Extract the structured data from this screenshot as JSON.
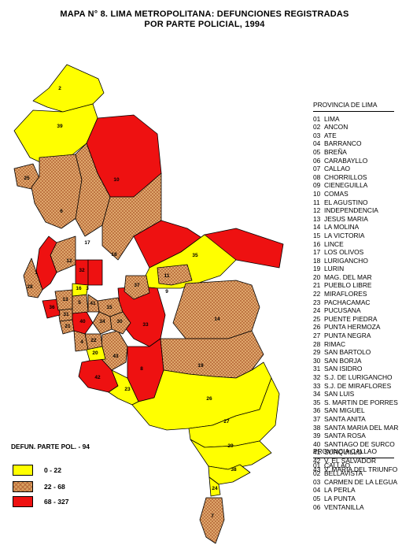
{
  "title": {
    "line1": "MAPA N° 8.  LIMA METROPOLITANA: DEFUNCIONES REGISTRADAS",
    "line2": "POR PARTE POLICIAL,  1994"
  },
  "colors": {
    "low": "#ffff00",
    "mid": "#d9a060",
    "high": "#ee1111",
    "outline": "#000000"
  },
  "lima": {
    "header": "PROVINCIA DE LIMA",
    "items": [
      {
        "num": "01",
        "name": "LIMA"
      },
      {
        "num": "02",
        "name": "ANCON"
      },
      {
        "num": "03",
        "name": "ATE"
      },
      {
        "num": "04",
        "name": "BARRANCO"
      },
      {
        "num": "05",
        "name": "BREÑA"
      },
      {
        "num": "06",
        "name": "CARABAYLLO"
      },
      {
        "num": "07",
        "name": "CALLAO"
      },
      {
        "num": "08",
        "name": "CHORRILLOS"
      },
      {
        "num": "09",
        "name": "CIENEGUILLA"
      },
      {
        "num": "10",
        "name": "COMAS"
      },
      {
        "num": "11",
        "name": "EL AGUSTINO"
      },
      {
        "num": "12",
        "name": "INDEPENDENCIA"
      },
      {
        "num": "13",
        "name": "JESUS MARIA"
      },
      {
        "num": "14",
        "name": "LA MOLINA"
      },
      {
        "num": "15",
        "name": "LA VICTORIA"
      },
      {
        "num": "16",
        "name": "LINCE"
      },
      {
        "num": "17",
        "name": "LOS OLIVOS"
      },
      {
        "num": "18",
        "name": "LURIGANCHO"
      },
      {
        "num": "19",
        "name": "LURIN"
      },
      {
        "num": "20",
        "name": "MAG. DEL MAR"
      },
      {
        "num": "21",
        "name": "PUEBLO LIBRE"
      },
      {
        "num": "22",
        "name": "MIRAFLORES"
      },
      {
        "num": "23",
        "name": "PACHACAMAC"
      },
      {
        "num": "24",
        "name": "PUCUSANA"
      },
      {
        "num": "25",
        "name": "PUENTE PIEDRA"
      },
      {
        "num": "26",
        "name": "PUNTA HERMOZA"
      },
      {
        "num": "27",
        "name": "PUNTA NEGRA"
      },
      {
        "num": "28",
        "name": "RIMAC"
      },
      {
        "num": "29",
        "name": "SAN BARTOLO"
      },
      {
        "num": "30",
        "name": "SAN BORJA"
      },
      {
        "num": "31",
        "name": "SAN ISIDRO"
      },
      {
        "num": "32",
        "name": "S.J. DE LURIGANCHO"
      },
      {
        "num": "33",
        "name": "S.J. DE MIRAFLORES"
      },
      {
        "num": "34",
        "name": "SAN LUIS"
      },
      {
        "num": "35",
        "name": "S. MARTIN DE PORRES"
      },
      {
        "num": "36",
        "name": "SAN MIGUEL"
      },
      {
        "num": "37",
        "name": "SANTA ANITA"
      },
      {
        "num": "38",
        "name": "SANTA MARIA DEL MAR"
      },
      {
        "num": "39",
        "name": "SANTA ROSA"
      },
      {
        "num": "40",
        "name": "SANTIAGO DE SURCO"
      },
      {
        "num": "41",
        "name": "SURQUILLO"
      },
      {
        "num": "42",
        "name": "V. EL SALVADOR"
      },
      {
        "num": "43",
        "name": "V. MARIA DEL TRIUNFO"
      }
    ]
  },
  "callao": {
    "header": "PROVINCIA CALLAO",
    "items": [
      {
        "num": "01",
        "name": "CALLAO"
      },
      {
        "num": "02",
        "name": "BELLAVISTA"
      },
      {
        "num": "03",
        "name": "CARMEN DE LA LEGUA"
      },
      {
        "num": "04",
        "name": "LA PERLA"
      },
      {
        "num": "05",
        "name": "LA PUNTA"
      },
      {
        "num": "06",
        "name": "VENTANILLA"
      }
    ]
  },
  "key": {
    "title": "DEFUN. PARTE POL. - 94",
    "ranges": [
      {
        "class": "low",
        "label": "0     -    22"
      },
      {
        "class": "mid",
        "label": "22    -    68"
      },
      {
        "class": "high",
        "label": "68   -   327"
      }
    ]
  },
  "districts": [
    {
      "label": "2",
      "class": "low"
    },
    {
      "label": "39",
      "class": "low"
    },
    {
      "label": "25",
      "class": "mid"
    },
    {
      "label": "6",
      "class": "mid"
    },
    {
      "label": "10",
      "class": "high"
    },
    {
      "label": "17",
      "class": "mid"
    },
    {
      "label": "12",
      "class": "mid"
    },
    {
      "label": "32",
      "class": "high"
    },
    {
      "label": "18",
      "class": "mid"
    },
    {
      "label": "35",
      "class": "high"
    },
    {
      "label": "1",
      "class": "high"
    },
    {
      "label": "28",
      "class": "mid"
    },
    {
      "label": "3",
      "class": "high"
    },
    {
      "label": "9",
      "class": "low"
    },
    {
      "label": "14",
      "class": "mid"
    },
    {
      "label": "33",
      "class": "high"
    },
    {
      "label": "43",
      "class": "mid"
    },
    {
      "label": "8",
      "class": "high"
    },
    {
      "label": "42",
      "class": "high"
    },
    {
      "label": "23",
      "class": "low"
    },
    {
      "label": "19",
      "class": "mid"
    },
    {
      "label": "26",
      "class": "low"
    },
    {
      "label": "27",
      "class": "low"
    },
    {
      "label": "29",
      "class": "low"
    },
    {
      "label": "38",
      "class": "low"
    },
    {
      "label": "24",
      "class": "low"
    },
    {
      "label": "7",
      "class": "mid"
    },
    {
      "label": "11",
      "class": "mid"
    },
    {
      "label": "37",
      "class": "mid"
    },
    {
      "label": "15",
      "class": "mid"
    },
    {
      "label": "34",
      "class": "mid"
    },
    {
      "label": "30",
      "class": "mid"
    },
    {
      "label": "40",
      "class": "high"
    },
    {
      "label": "22",
      "class": "mid"
    },
    {
      "label": "4",
      "class": "mid"
    },
    {
      "label": "20",
      "class": "low"
    },
    {
      "label": "31",
      "class": "mid"
    },
    {
      "label": "21",
      "class": "mid"
    },
    {
      "label": "36",
      "class": "high"
    },
    {
      "label": "13",
      "class": "mid"
    },
    {
      "label": "5",
      "class": "mid"
    },
    {
      "label": "16",
      "class": "low"
    },
    {
      "label": "41",
      "class": "mid"
    }
  ]
}
